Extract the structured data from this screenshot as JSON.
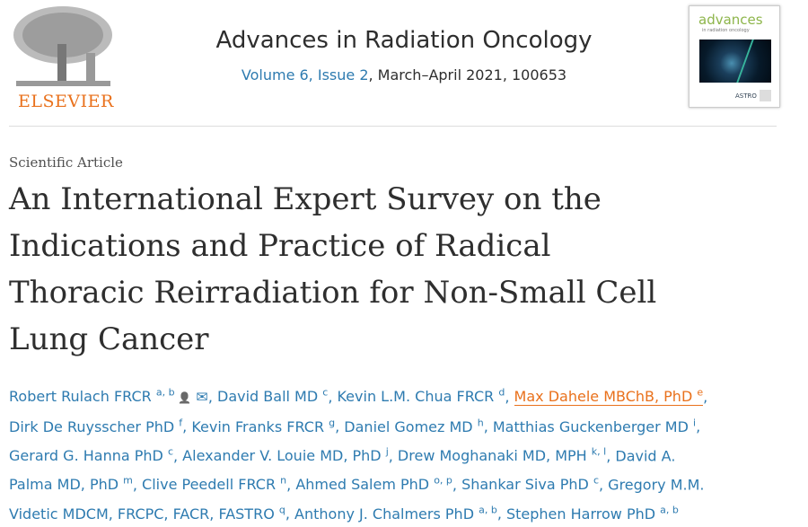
{
  "publisher": {
    "logo_text": "ELSEVIER"
  },
  "journal": {
    "title": "Advances in Radiation Oncology",
    "volume_issue": "Volume 6, Issue 2",
    "date_id": ", March–April 2021, 100653"
  },
  "cover": {
    "title": "advances",
    "subtitle": "in radiation oncology",
    "astro": "ASTRO"
  },
  "article": {
    "type": "Scientific Article",
    "title_lines": [
      "An International Expert Survey on the",
      "Indications and Practice of Radical",
      "Thoracic Reirradiation for Non-Small Cell",
      "Lung Cancer"
    ]
  },
  "authors": [
    {
      "name": "Robert Rulach FRCR",
      "sup": "a, b",
      "line": 0,
      "icons": true
    },
    {
      "name": "David Ball MD",
      "sup": "c",
      "line": 0
    },
    {
      "name": "Kevin L.M. Chua FRCR",
      "sup": "d",
      "line": 0
    },
    {
      "name": "Max Dahele MBChB, PhD",
      "sup": "e",
      "line": 0,
      "highlight": true
    },
    {
      "name": "Dirk De Ruysscher PhD",
      "sup": "f",
      "line": 1
    },
    {
      "name": "Kevin Franks FRCR",
      "sup": "g",
      "line": 1
    },
    {
      "name": "Daniel Gomez MD",
      "sup": "h",
      "line": 1
    },
    {
      "name": "Matthias Guckenberger MD",
      "sup": "i",
      "line": 1
    },
    {
      "name": "Gerard G. Hanna PhD",
      "sup": "c",
      "line": 2
    },
    {
      "name": "Alexander V. Louie MD, PhD",
      "sup": "j",
      "line": 2
    },
    {
      "name": "Drew Moghanaki MD, MPH",
      "sup": "k, l",
      "line": 2
    },
    {
      "name": "David A.",
      "sup": "",
      "line": 2,
      "nocomma": true
    },
    {
      "name": "Palma MD, PhD",
      "sup": "m",
      "line": 3
    },
    {
      "name": "Clive Peedell FRCR",
      "sup": "n",
      "line": 3
    },
    {
      "name": "Ahmed Salem PhD",
      "sup": "o, p",
      "line": 3
    },
    {
      "name": "Shankar Siva PhD",
      "sup": "c",
      "line": 3
    },
    {
      "name": "Gregory M.M.",
      "sup": "",
      "line": 3,
      "nocomma": true
    },
    {
      "name": "Videtic MDCM, FRCPC, FACR, FASTRO",
      "sup": "q",
      "line": 4
    },
    {
      "name": "Anthony J. Chalmers PhD",
      "sup": "a, b",
      "line": 4
    },
    {
      "name": "Stephen Harrow PhD",
      "sup": "a, b",
      "line": 4,
      "last": true
    }
  ]
}
